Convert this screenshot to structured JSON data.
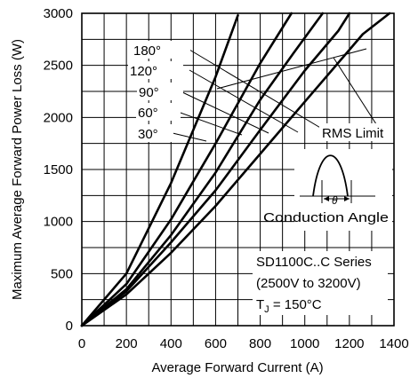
{
  "chart_data": {
    "type": "line",
    "title": "",
    "xlabel": "Average Forward Current (A)",
    "ylabel": "Maximum Average Forward Power Loss (W)",
    "xlim": [
      0,
      1400
    ],
    "ylim": [
      0,
      3000
    ],
    "x_ticks": [
      "0",
      "200",
      "400",
      "600",
      "800",
      "1000",
      "1200",
      "1400"
    ],
    "y_ticks": [
      "0",
      "500",
      "1000",
      "1500",
      "2000",
      "2500",
      "3000"
    ],
    "grid": true,
    "series": [
      {
        "name": "180°",
        "x": [
          0,
          200,
          400,
          600,
          800,
          1000,
          1200,
          1260,
          1380
        ],
        "y": [
          0,
          300,
          700,
          1150,
          1650,
          2150,
          2650,
          2800,
          3000
        ]
      },
      {
        "name": "120°",
        "x": [
          0,
          200,
          400,
          600,
          800,
          1000,
          1150,
          1200
        ],
        "y": [
          0,
          330,
          800,
          1300,
          1880,
          2450,
          2830,
          3000
        ]
      },
      {
        "name": "90°",
        "x": [
          0,
          200,
          400,
          600,
          800,
          950,
          1080
        ],
        "y": [
          0,
          350,
          870,
          1470,
          2170,
          2620,
          3000
        ]
      },
      {
        "name": "60°",
        "x": [
          0,
          200,
          400,
          600,
          800,
          940
        ],
        "y": [
          0,
          400,
          1020,
          1750,
          2520,
          3000
        ]
      },
      {
        "name": "30°",
        "x": [
          0,
          200,
          400,
          600,
          700
        ],
        "y": [
          0,
          500,
          1370,
          2390,
          2980
        ]
      }
    ],
    "annotations": {
      "rms_limit": "RMS Limit",
      "conduction_angle": "Conduction Angle",
      "series_line1": "SD1100C..C Series",
      "series_line2": "(2500V to 3200V)",
      "tj_prefix": "T",
      "tj_sub": "J",
      "tj_value": " = 150°C"
    }
  }
}
